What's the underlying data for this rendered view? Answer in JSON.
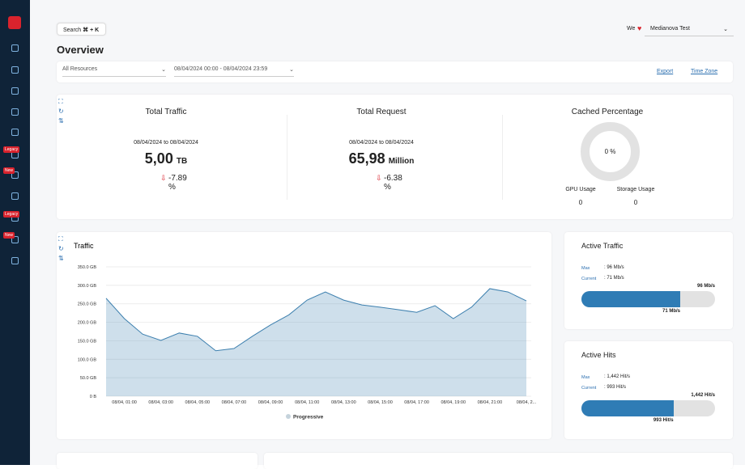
{
  "topbar": {
    "search": "Search",
    "shortcut": "⌘ + K",
    "we": "We",
    "account": "Medianova Test"
  },
  "sidebar": {
    "badges": [
      "Legacy",
      "New",
      "Legacy",
      "New"
    ]
  },
  "page_title": "Overview",
  "filters": {
    "resource": "All Resources",
    "date_range": "08/04/2024 00:00 - 08/04/2024 23:59",
    "export": "Export",
    "time_zone": "Time Zone"
  },
  "stats": [
    {
      "title": "Total Traffic",
      "date": "08/04/2024 to 08/04/2024",
      "value": "5,00",
      "unit": "TB",
      "change": "-7.89 %"
    },
    {
      "title": "Total Request",
      "date": "08/04/2024 to 08/04/2024",
      "value": "65,98",
      "unit": "Million",
      "change": "-6.38 %"
    }
  ],
  "cached": {
    "title": "Cached Percentage",
    "percent": "0 %",
    "gpu_label": "GPU Usage",
    "gpu_value": "0",
    "storage_label": "Storage Usage",
    "storage_value": "0"
  },
  "active_traffic": {
    "title": "Active Traffic",
    "max_label": "Max",
    "max_text": ": 96 Mb/s",
    "current_label": "Current",
    "current_text": ": 71 Mb/s",
    "max": 96,
    "current": 71,
    "max_bar_label": "96 Mb/s",
    "current_bar_label": "71 Mb/s"
  },
  "active_hits": {
    "title": "Active Hits",
    "max_label": "Max",
    "max_text": ": 1,442 Hit/s",
    "current_label": "Current",
    "current_text": ": 993 Hit/s",
    "max": 1442,
    "current": 993,
    "max_bar_label": "1,442 Hit/s",
    "current_bar_label": "993 Hit/s"
  },
  "chart_data": {
    "type": "area",
    "title": "Traffic",
    "categories": [
      null,
      "08/04, 01:00",
      null,
      "08/04, 03:00",
      null,
      "08/04, 05:00",
      null,
      "08/04, 07:00",
      null,
      "08/04, 09:00",
      null,
      "08/04, 11:00",
      null,
      "08/04, 13:00",
      null,
      "08/04, 15:00",
      null,
      "08/04, 17:00",
      null,
      "08/04, 19:00",
      null,
      "08/04, 21:00",
      null,
      "08/04, 2..."
    ],
    "series": [
      {
        "name": "Progressive",
        "color": "#3c7fae",
        "values": [
          265,
          210,
          168,
          151,
          171,
          162,
          123,
          129,
          162,
          193,
          220,
          260,
          282,
          260,
          247,
          241,
          234,
          227,
          245,
          210,
          241,
          291,
          282,
          258
        ]
      }
    ],
    "ylim": [
      0,
      350
    ],
    "yticks": [
      {
        "value": 0,
        "label": "0 B"
      },
      {
        "value": 50,
        "label": "50.0 GB"
      },
      {
        "value": 100,
        "label": "100.0 GB"
      },
      {
        "value": 150,
        "label": "150.0 GB"
      },
      {
        "value": 200,
        "label": "200.0 GB"
      },
      {
        "value": 250,
        "label": "250.0 GB"
      },
      {
        "value": 300,
        "label": "300.0 GB"
      },
      {
        "value": 350,
        "label": "350.0 GB"
      }
    ],
    "grid": true,
    "legend": "bottom"
  }
}
